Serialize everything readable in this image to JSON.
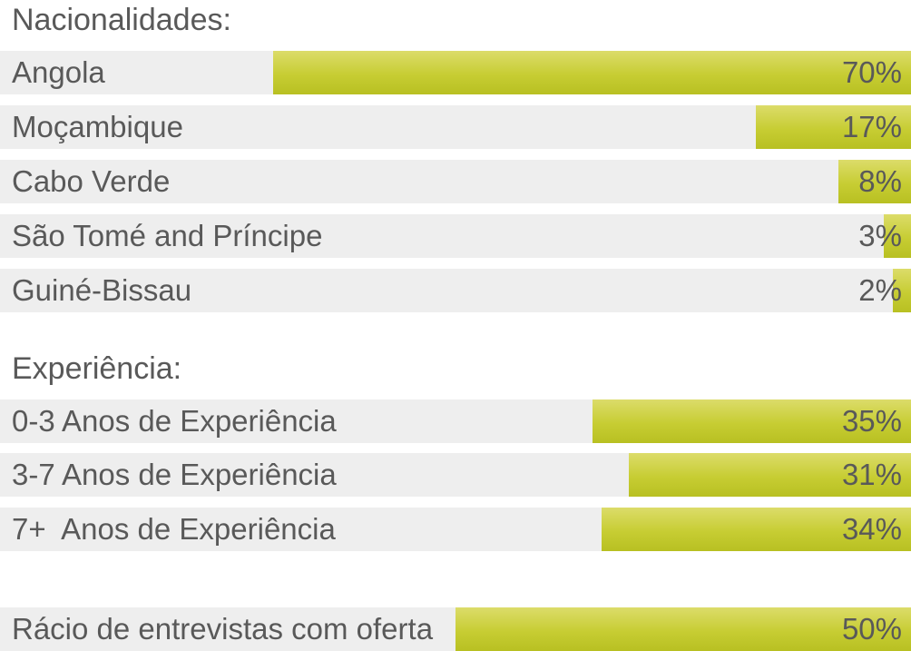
{
  "chart_data": [
    {
      "type": "bar",
      "orientation": "horizontal",
      "title": "Nacionalidades:",
      "xlim": [
        0,
        100
      ],
      "unit": "%",
      "categories": [
        "Angola",
        "Moçambique",
        "Cabo Verde",
        "São Tomé and Príncipe",
        "Guiné-Bissau"
      ],
      "values": [
        70,
        17,
        8,
        3,
        2
      ],
      "value_labels": [
        "70%",
        "17%",
        "8%",
        "3%",
        "2%"
      ]
    },
    {
      "type": "bar",
      "orientation": "horizontal",
      "title": "Experiência:",
      "xlim": [
        0,
        100
      ],
      "unit": "%",
      "categories": [
        "0-3 Anos de Experiência",
        "3-7 Anos de Experiência",
        "7+  Anos de Experiência"
      ],
      "values": [
        35,
        31,
        34
      ],
      "value_labels": [
        "35%",
        "31%",
        "34%"
      ]
    },
    {
      "type": "bar",
      "orientation": "horizontal",
      "title": "",
      "xlim": [
        0,
        100
      ],
      "unit": "%",
      "categories": [
        "Rácio de entrevistas com oferta"
      ],
      "values": [
        50
      ],
      "value_labels": [
        "50%"
      ]
    }
  ],
  "colors": {
    "track": "#eeeeee",
    "bar": "#c7cd33",
    "text": "#595959"
  }
}
